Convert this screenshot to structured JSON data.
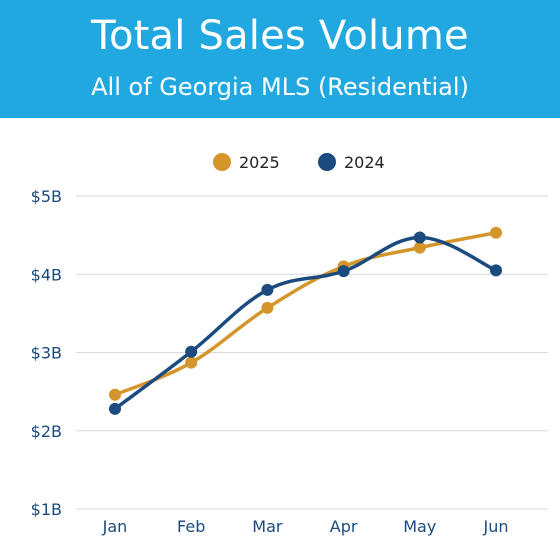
{
  "header": {
    "title": "Total Sales Volume",
    "subtitle": "All of Georgia MLS (Residential)",
    "background_color": "#22a8e0"
  },
  "chart_data": {
    "type": "line",
    "title": "Total Sales Volume",
    "subtitle": "All of Georgia MLS (Residential)",
    "categories": [
      "Jan",
      "Feb",
      "Mar",
      "Apr",
      "May",
      "Jun"
    ],
    "series": [
      {
        "name": "2025",
        "color": "#d4962b",
        "values": [
          2.46,
          2.87,
          3.57,
          4.1,
          4.34,
          4.53
        ]
      },
      {
        "name": "2024",
        "color": "#1a4a7e",
        "values": [
          2.28,
          3.01,
          3.8,
          4.04,
          4.47,
          4.05
        ]
      }
    ],
    "ylim": [
      1,
      5
    ],
    "yticks": [
      1,
      2,
      3,
      4,
      5
    ],
    "ytick_labels": [
      "$1B",
      "$2B",
      "$3B",
      "$4B",
      "$5B"
    ],
    "grid": true,
    "legend_position": "top-center",
    "xlabel": "",
    "ylabel": "",
    "axis_label_color": "#1a4a7e"
  }
}
